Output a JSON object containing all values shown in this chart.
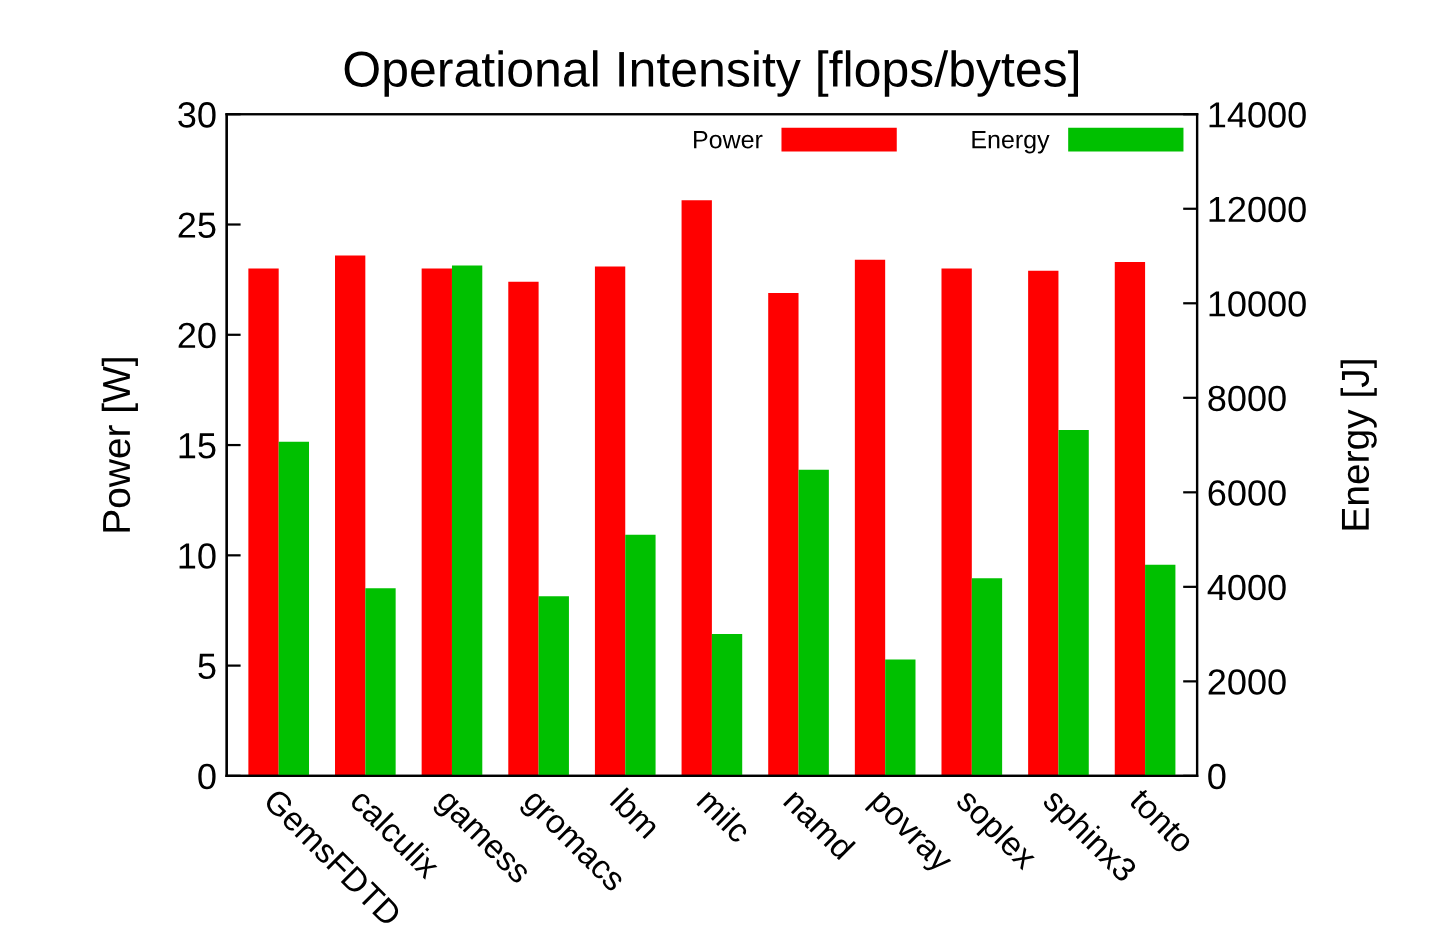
{
  "chart_data": {
    "type": "bar",
    "title": "Operational Intensity [flops/bytes]",
    "ylabel": "Power [W]",
    "y2label": "Energy [J]",
    "categories": [
      "GemsFDTD",
      "calculix",
      "gamess",
      "gromacs",
      "lbm",
      "milc",
      "namd",
      "povray",
      "soplex",
      "sphinx3",
      "tonto"
    ],
    "series": [
      {
        "name": "Power",
        "color": "#ff0000",
        "values": [
          23.0,
          23.6,
          23.0,
          22.4,
          23.1,
          26.1,
          21.9,
          23.4,
          23.0,
          22.9,
          23.3
        ]
      },
      {
        "name": "Energy",
        "color": "#00c000",
        "axis": "y2",
        "values": [
          7070,
          3970,
          10800,
          3800,
          5100,
          3000,
          6480,
          2460,
          4180,
          7320,
          4470
        ]
      }
    ],
    "ylim": [
      0,
      30
    ],
    "yticks": [
      0,
      5,
      10,
      15,
      20,
      25,
      30
    ],
    "y2lim": [
      0,
      14000
    ],
    "y2ticks": [
      0,
      2000,
      4000,
      6000,
      8000,
      10000,
      12000,
      14000
    ],
    "grid": false,
    "legend": "top right"
  }
}
